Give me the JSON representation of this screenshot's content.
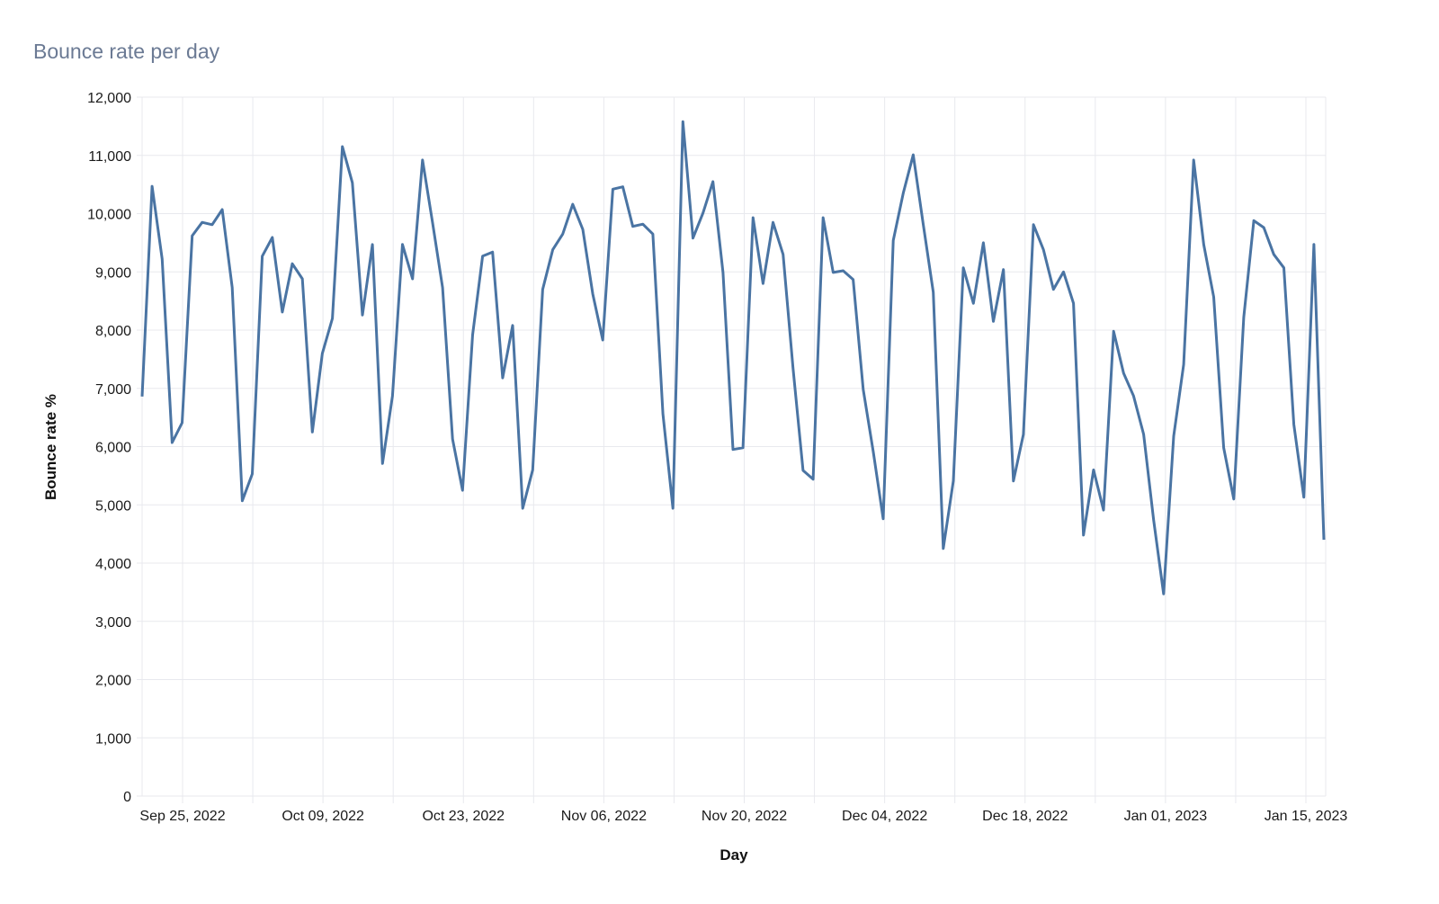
{
  "header": {
    "title": "Bounce rate per day"
  },
  "colors": {
    "line": "#4a74a3",
    "grid": "#e8e9ee",
    "title": "#6b7a94"
  },
  "chart_data": {
    "type": "line",
    "title": "Bounce rate per day",
    "xlabel": "Day",
    "ylabel": "Bounce rate %",
    "ylim": [
      0,
      12000
    ],
    "yticks": [
      0,
      1000,
      2000,
      3000,
      4000,
      5000,
      6000,
      7000,
      8000,
      9000,
      10000,
      11000,
      12000
    ],
    "ytick_labels": [
      "0",
      "1,000",
      "2,000",
      "3,000",
      "4,000",
      "5,000",
      "6,000",
      "7,000",
      "8,000",
      "9,000",
      "10,000",
      "11,000",
      "12,000"
    ],
    "xtick_labels": [
      "Sep 25, 2022",
      "Oct 09, 2022",
      "Oct 23, 2022",
      "Nov 06, 2022",
      "Nov 20, 2022",
      "Dec 04, 2022",
      "Dec 18, 2022",
      "Jan 01, 2023",
      "Jan 15, 2023"
    ],
    "x_start": "Sep 21, 2022",
    "x_end": "Jan 18, 2023",
    "grid": true,
    "legend": false,
    "series": [
      {
        "name": "Bounce rate %",
        "values": [
          6860,
          10470,
          9220,
          6070,
          6410,
          9620,
          9850,
          9810,
          10070,
          8730,
          5070,
          5530,
          9270,
          9590,
          8310,
          9140,
          8880,
          6250,
          7600,
          8200,
          11150,
          10530,
          8260,
          9470,
          5710,
          6870,
          9470,
          8880,
          10920,
          9850,
          8730,
          6130,
          5250,
          7920,
          9270,
          9340,
          7180,
          8080,
          4940,
          5600,
          8700,
          9380,
          9650,
          10160,
          9730,
          8620,
          7830,
          10420,
          10460,
          9780,
          9820,
          9650,
          6560,
          4940,
          11580,
          9580,
          10010,
          10550,
          8990,
          5950,
          5980,
          9930,
          8800,
          9850,
          9300,
          7340,
          5590,
          5440,
          9930,
          8990,
          9020,
          8870,
          6980,
          5920,
          4760,
          9540,
          10350,
          11010,
          9810,
          8650,
          4250,
          5410,
          9070,
          8460,
          9500,
          8150,
          9040,
          5410,
          6210,
          9810,
          9380,
          8700,
          9000,
          8460,
          4480,
          5600,
          4910,
          7980,
          7260,
          6870,
          6210,
          4740,
          3470,
          6180,
          7410,
          10920,
          9470,
          8570,
          5980,
          5100,
          8220,
          9880,
          9760,
          9300,
          9070,
          6380,
          5130,
          9470,
          4400
        ]
      }
    ]
  }
}
